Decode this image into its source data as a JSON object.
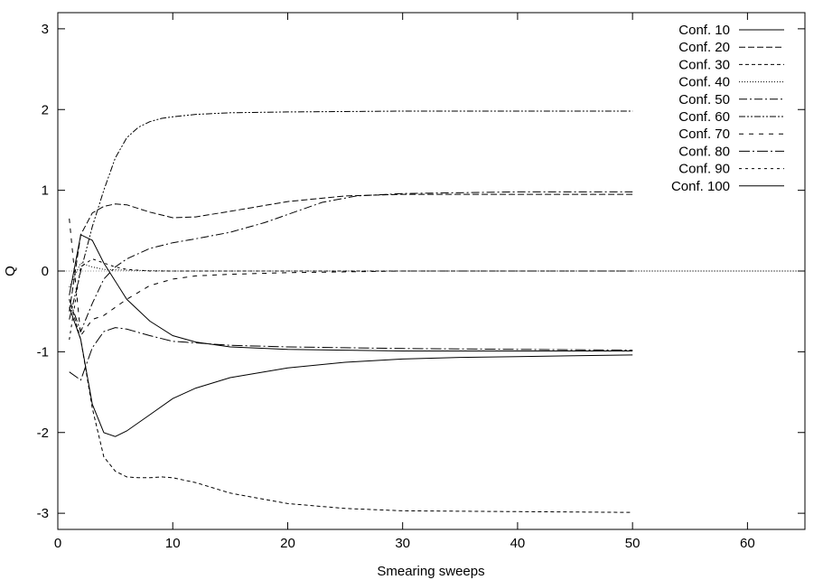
{
  "chart_data": {
    "type": "line",
    "title": "",
    "xlabel": "Smearing sweeps",
    "ylabel": "Q",
    "xlim": [
      0,
      65
    ],
    "ylim": [
      -3.2,
      3.2
    ],
    "xticks": [
      0,
      10,
      20,
      30,
      40,
      50,
      60
    ],
    "yticks": [
      -3,
      -2,
      -1,
      0,
      1,
      2,
      3
    ],
    "grid": false,
    "legend_position": "top-right",
    "series": [
      {
        "name": "Conf. 10",
        "dash": "solid",
        "x": [
          1,
          2,
          3,
          4,
          6,
          8,
          10,
          12,
          15,
          20,
          25,
          30,
          40,
          50
        ],
        "y": [
          -0.3,
          0.45,
          0.38,
          0.1,
          -0.35,
          -0.62,
          -0.8,
          -0.88,
          -0.94,
          -0.97,
          -0.98,
          -0.99,
          -0.99,
          -0.99
        ]
      },
      {
        "name": "Conf. 20",
        "dash": "longdash",
        "x": [
          1,
          2,
          3,
          4,
          5,
          6,
          8,
          10,
          12,
          15,
          20,
          25,
          30,
          40,
          50
        ],
        "y": [
          -0.5,
          0.45,
          0.72,
          0.8,
          0.83,
          0.82,
          0.73,
          0.66,
          0.67,
          0.74,
          0.86,
          0.93,
          0.95,
          0.95,
          0.95
        ]
      },
      {
        "name": "Conf. 30",
        "dash": "dash",
        "x": [
          1,
          2,
          3,
          4,
          5,
          6,
          7,
          8,
          9,
          10,
          12,
          15,
          20,
          25,
          30,
          40,
          50
        ],
        "y": [
          -0.35,
          -0.85,
          -1.7,
          -2.3,
          -2.48,
          -2.55,
          -2.56,
          -2.56,
          -2.55,
          -2.56,
          -2.62,
          -2.75,
          -2.88,
          -2.94,
          -2.97,
          -2.98,
          -2.99
        ]
      },
      {
        "name": "Conf. 40",
        "dash": "dot",
        "x": [
          1,
          2,
          3,
          4,
          6,
          10,
          20,
          30,
          40,
          50,
          60,
          65
        ],
        "y": [
          -0.2,
          0.1,
          0.05,
          0.02,
          0.01,
          0.0,
          0.0,
          0.0,
          0.0,
          0.0,
          0.0,
          0.0
        ]
      },
      {
        "name": "Conf. 50",
        "dash": "dashdot",
        "x": [
          1,
          2,
          3,
          4,
          5,
          6,
          8,
          10,
          12,
          15,
          18,
          20,
          23,
          26,
          30,
          40,
          50
        ],
        "y": [
          -0.35,
          -0.75,
          -0.4,
          -0.1,
          0.05,
          0.15,
          0.28,
          0.35,
          0.4,
          0.48,
          0.6,
          0.7,
          0.85,
          0.93,
          0.96,
          0.98,
          0.98
        ]
      },
      {
        "name": "Conf. 60",
        "dash": "dashdotdot",
        "x": [
          1,
          2,
          3,
          4,
          5,
          6,
          7,
          8,
          9,
          10,
          12,
          15,
          20,
          30,
          40,
          50
        ],
        "y": [
          -0.6,
          0.0,
          0.55,
          1.0,
          1.4,
          1.65,
          1.78,
          1.85,
          1.89,
          1.91,
          1.94,
          1.96,
          1.97,
          1.98,
          1.98,
          1.98
        ]
      },
      {
        "name": "Conf. 70",
        "dash": "dashgap",
        "x": [
          1,
          2,
          3,
          4,
          5,
          6,
          8,
          10,
          12,
          15,
          20,
          25,
          30,
          40,
          50
        ],
        "y": [
          0.65,
          -0.8,
          -0.6,
          -0.55,
          -0.45,
          -0.35,
          -0.18,
          -0.1,
          -0.06,
          -0.04,
          -0.02,
          -0.01,
          0.0,
          0.0,
          0.0
        ]
      },
      {
        "name": "Conf. 80",
        "dash": "dashdotlong",
        "x": [
          1,
          2,
          3,
          4,
          5,
          6,
          8,
          10,
          15,
          20,
          30,
          40,
          50
        ],
        "y": [
          -1.25,
          -1.35,
          -0.95,
          -0.75,
          -0.7,
          -0.72,
          -0.8,
          -0.87,
          -0.92,
          -0.94,
          -0.96,
          -0.97,
          -0.98
        ]
      },
      {
        "name": "Conf. 90",
        "dash": "shortdash",
        "x": [
          1,
          2,
          3,
          4,
          5,
          6,
          8,
          10,
          12,
          15,
          20,
          30,
          40,
          50
        ],
        "y": [
          -0.85,
          0.05,
          0.15,
          0.1,
          0.05,
          0.02,
          0.0,
          0.0,
          0.0,
          0.0,
          0.0,
          0.0,
          0.0,
          0.0
        ]
      },
      {
        "name": "Conf. 100",
        "dash": "solid",
        "x": [
          1,
          2,
          3,
          4,
          5,
          6,
          8,
          10,
          12,
          15,
          20,
          25,
          30,
          35,
          40,
          45,
          50
        ],
        "y": [
          -0.45,
          -0.85,
          -1.65,
          -2.0,
          -2.05,
          -1.98,
          -1.78,
          -1.58,
          -1.45,
          -1.32,
          -1.2,
          -1.13,
          -1.09,
          -1.07,
          -1.06,
          -1.05,
          -1.04
        ]
      }
    ]
  }
}
